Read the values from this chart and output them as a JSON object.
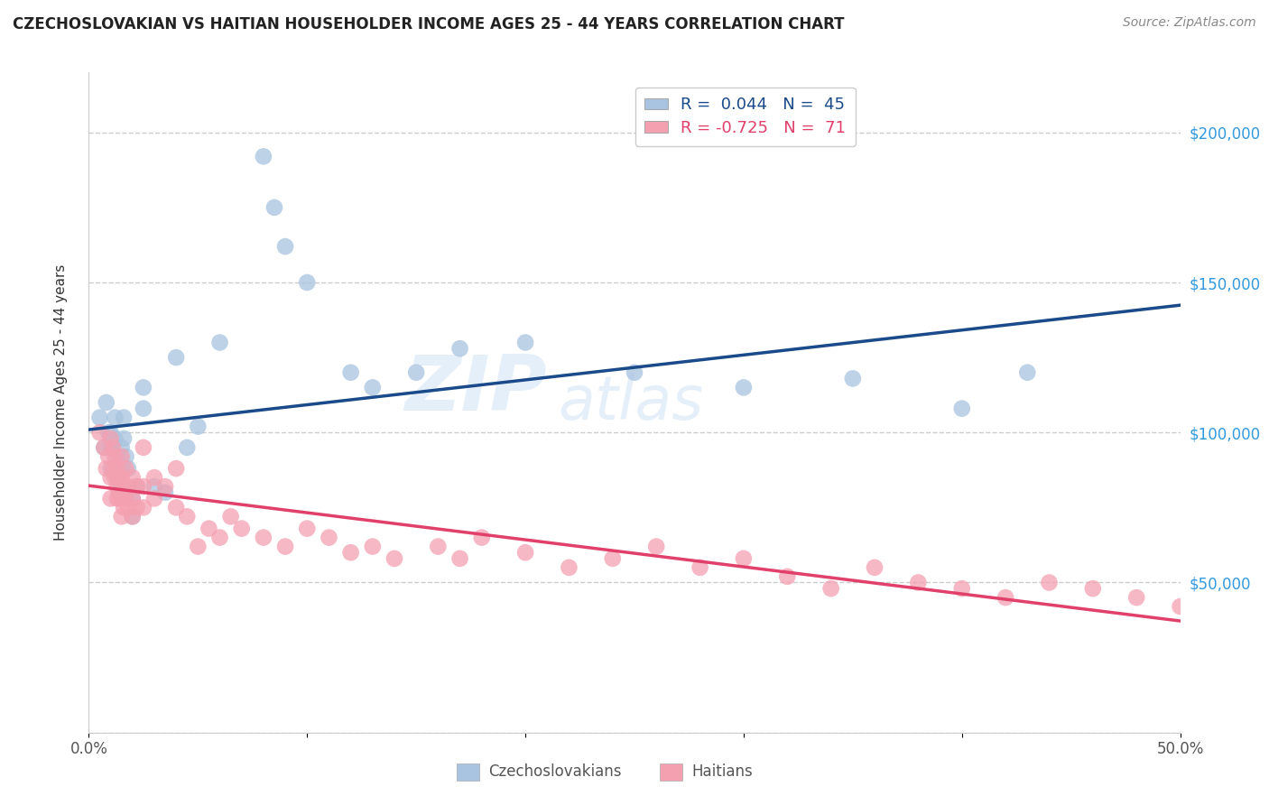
{
  "title": "CZECHOSLOVAKIAN VS HAITIAN HOUSEHOLDER INCOME AGES 25 - 44 YEARS CORRELATION CHART",
  "source_text": "Source: ZipAtlas.com",
  "ylabel": "Householder Income Ages 25 - 44 years",
  "xlim": [
    0.0,
    0.5
  ],
  "ylim": [
    0,
    220000
  ],
  "yticks": [
    0,
    50000,
    100000,
    150000,
    200000
  ],
  "ytick_labels": [
    "",
    "$50,000",
    "$100,000",
    "$150,000",
    "$200,000"
  ],
  "xticks": [
    0.0,
    0.1,
    0.2,
    0.3,
    0.4,
    0.5
  ],
  "xtick_labels": [
    "0.0%",
    "",
    "",
    "",
    "",
    "50.0%"
  ],
  "czech_color": "#a8c4e0",
  "haitian_color": "#f4a0b0",
  "czech_line_color": "#1a4a8a",
  "haitian_line_color": "#e0406a",
  "czech_R": 0.044,
  "czech_N": 45,
  "haitian_R": -0.725,
  "haitian_N": 71,
  "background_color": "#ffffff",
  "grid_color": "#cccccc",
  "watermark_text": "ZIP",
  "watermark_text2": "atlas",
  "czech_scatter_x": [
    0.005,
    0.007,
    0.008,
    0.009,
    0.01,
    0.01,
    0.01,
    0.012,
    0.012,
    0.013,
    0.013,
    0.013,
    0.014,
    0.015,
    0.015,
    0.015,
    0.016,
    0.016,
    0.017,
    0.018,
    0.02,
    0.02,
    0.022,
    0.025,
    0.025,
    0.03,
    0.035,
    0.04,
    0.045,
    0.05,
    0.06,
    0.08,
    0.085,
    0.09,
    0.1,
    0.12,
    0.13,
    0.15,
    0.17,
    0.2,
    0.25,
    0.3,
    0.35,
    0.4,
    0.43
  ],
  "czech_scatter_y": [
    105000,
    95000,
    110000,
    100000,
    88000,
    95000,
    100000,
    105000,
    98000,
    92000,
    88000,
    85000,
    80000,
    95000,
    88000,
    82000,
    105000,
    98000,
    92000,
    88000,
    78000,
    72000,
    82000,
    115000,
    108000,
    82000,
    80000,
    125000,
    95000,
    102000,
    130000,
    192000,
    175000,
    162000,
    150000,
    120000,
    115000,
    120000,
    128000,
    130000,
    120000,
    115000,
    118000,
    108000,
    120000
  ],
  "haitian_scatter_x": [
    0.005,
    0.007,
    0.008,
    0.009,
    0.01,
    0.01,
    0.01,
    0.011,
    0.011,
    0.012,
    0.012,
    0.013,
    0.013,
    0.013,
    0.014,
    0.014,
    0.015,
    0.015,
    0.015,
    0.015,
    0.016,
    0.016,
    0.017,
    0.017,
    0.018,
    0.018,
    0.02,
    0.02,
    0.02,
    0.022,
    0.022,
    0.025,
    0.025,
    0.025,
    0.03,
    0.03,
    0.035,
    0.04,
    0.04,
    0.045,
    0.05,
    0.055,
    0.06,
    0.065,
    0.07,
    0.08,
    0.09,
    0.1,
    0.11,
    0.12,
    0.13,
    0.14,
    0.16,
    0.17,
    0.18,
    0.2,
    0.22,
    0.24,
    0.26,
    0.28,
    0.3,
    0.32,
    0.34,
    0.36,
    0.38,
    0.4,
    0.42,
    0.44,
    0.46,
    0.48,
    0.5
  ],
  "haitian_scatter_y": [
    100000,
    95000,
    88000,
    92000,
    98000,
    85000,
    78000,
    95000,
    88000,
    92000,
    85000,
    88000,
    82000,
    78000,
    85000,
    78000,
    92000,
    85000,
    78000,
    72000,
    82000,
    75000,
    88000,
    78000,
    82000,
    75000,
    85000,
    78000,
    72000,
    82000,
    75000,
    95000,
    82000,
    75000,
    85000,
    78000,
    82000,
    88000,
    75000,
    72000,
    62000,
    68000,
    65000,
    72000,
    68000,
    65000,
    62000,
    68000,
    65000,
    60000,
    62000,
    58000,
    62000,
    58000,
    65000,
    60000,
    55000,
    58000,
    62000,
    55000,
    58000,
    52000,
    48000,
    55000,
    50000,
    48000,
    45000,
    50000,
    48000,
    45000,
    42000
  ]
}
